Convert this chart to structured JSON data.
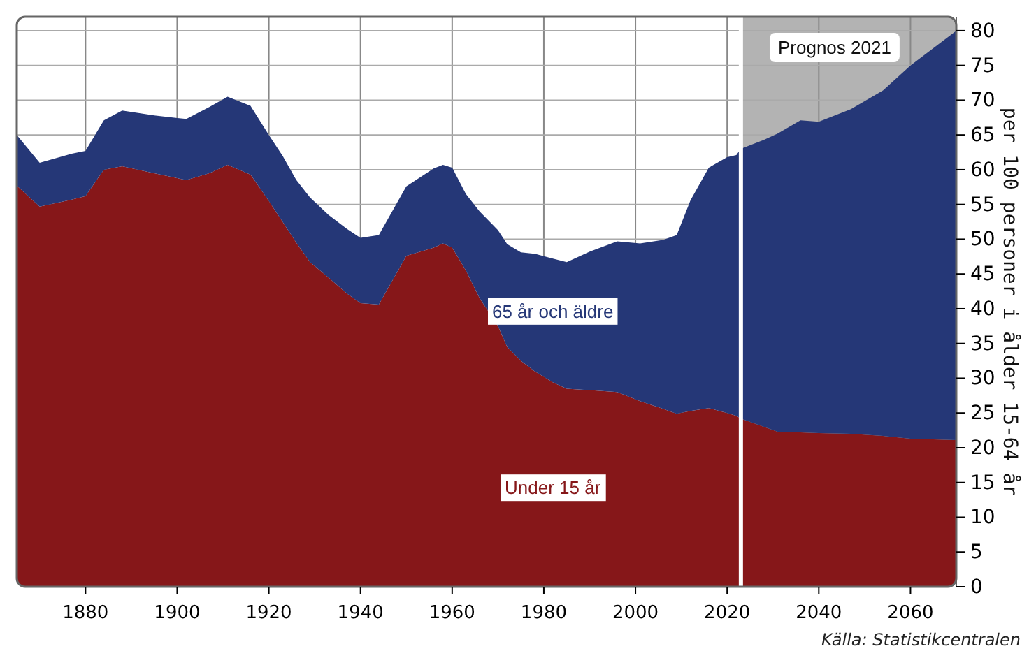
{
  "chart_data": {
    "type": "area",
    "stacked": true,
    "x": [
      1865,
      1870,
      1877,
      1880,
      1884,
      1888,
      1895,
      1902,
      1907,
      1911,
      1916,
      1920,
      1923,
      1926,
      1929,
      1933,
      1937,
      1940,
      1944,
      1950,
      1956,
      1958,
      1960,
      1963,
      1966,
      1970,
      1972,
      1975,
      1978,
      1982,
      1985,
      1990,
      1996,
      2001,
      2006,
      2009,
      2012,
      2016,
      2020,
      2022,
      2023,
      2028,
      2031,
      2036,
      2040,
      2047,
      2054,
      2060,
      2070
    ],
    "series": [
      {
        "name": "Under 15 år",
        "color": "#861719",
        "values": [
          57.7,
          54.7,
          55.7,
          56.2,
          60,
          60.5,
          59.5,
          58.5,
          59.5,
          60.7,
          59.3,
          55.5,
          52.5,
          49.5,
          46.7,
          44.5,
          42.2,
          40.8,
          40.6,
          47.6,
          48.8,
          49.4,
          48.8,
          45.5,
          41.5,
          37.5,
          34.5,
          32.5,
          31,
          29.4,
          28.5,
          28.3,
          28,
          26.7,
          25.6,
          24.9,
          25.3,
          25.7,
          25,
          24.6,
          24.2,
          23,
          22.3,
          22.2,
          22.1,
          22,
          21.7,
          21.3,
          21.1
        ]
      },
      {
        "name": "65 år och äldre",
        "color": "#253777",
        "values": [
          7.3,
          6.3,
          6.6,
          6.5,
          7.1,
          8,
          8.3,
          8.8,
          9.5,
          9.8,
          9.9,
          9.5,
          9.5,
          9,
          9.3,
          9,
          9.3,
          9.4,
          10,
          10,
          11.4,
          11.3,
          11.5,
          11,
          12.5,
          13.8,
          14.8,
          15.6,
          16.9,
          17.8,
          18.2,
          19.9,
          21.7,
          22.7,
          24.3,
          25.7,
          30.3,
          34.6,
          36.8,
          37.5,
          38.8,
          41.3,
          42.9,
          44.9,
          44.8,
          46.7,
          49.7,
          53.7,
          58.9
        ]
      }
    ],
    "xlim": [
      1865,
      2070
    ],
    "xticks": [
      1880,
      1900,
      1920,
      1940,
      1960,
      1980,
      2000,
      2020,
      2040,
      2060
    ],
    "ylim": [
      0,
      82
    ],
    "yticks": [
      0,
      5,
      10,
      15,
      20,
      25,
      30,
      35,
      40,
      45,
      50,
      55,
      60,
      65,
      70,
      75,
      80
    ],
    "ylabel": "per 100 personer i ålder 15-64 år",
    "grid": true,
    "bands": [
      {
        "axis": "x",
        "from": 2023,
        "to": 2070,
        "label": "Prognos 2021",
        "color": "#b3b3b3"
      }
    ],
    "ref_lines": [
      {
        "axis": "x",
        "value": 2023,
        "color": "#ffffff"
      }
    ],
    "annotations": [
      "Källa: Statistikcentralen"
    ]
  }
}
